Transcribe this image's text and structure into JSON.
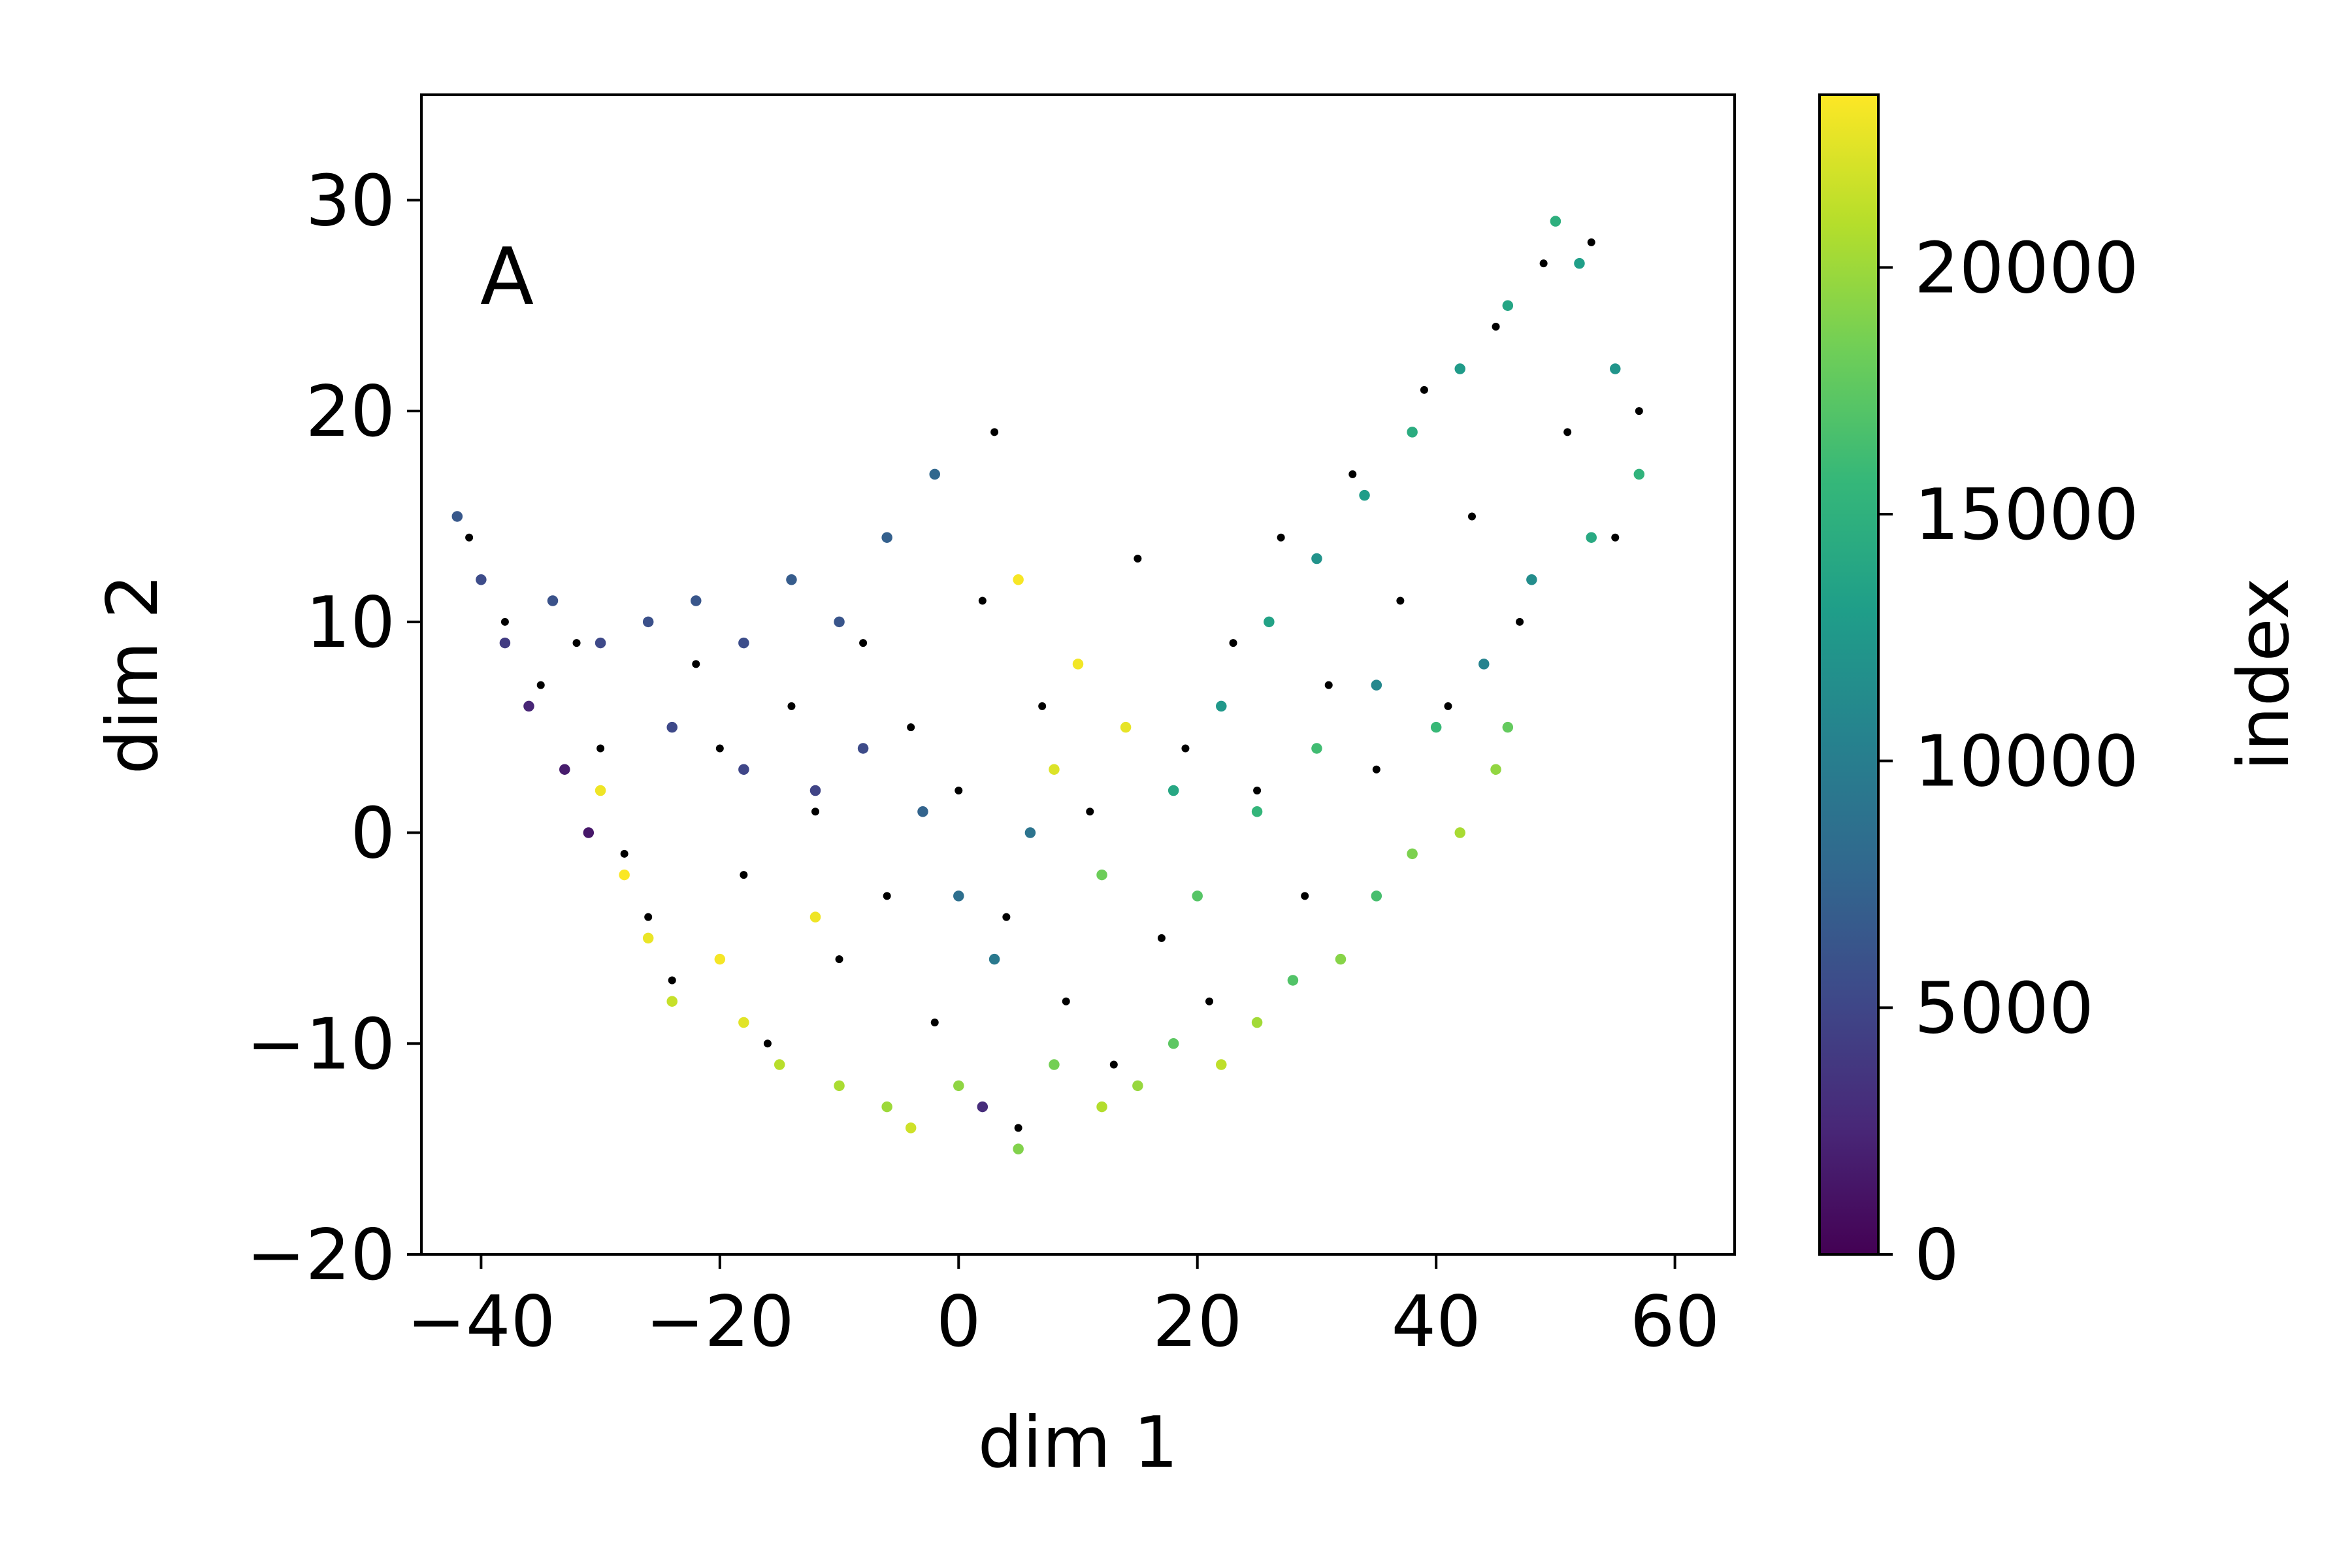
{
  "chart_data": {
    "type": "scatter",
    "panel_label": "A",
    "xlabel": "dim 1",
    "ylabel": "dim 2",
    "xlim": [
      -45,
      65
    ],
    "ylim": [
      -20,
      35
    ],
    "xticks": [
      -40,
      -20,
      0,
      20,
      40,
      60
    ],
    "xtick_labels": [
      "−40",
      "−20",
      "0",
      "20",
      "40",
      "60"
    ],
    "yticks": [
      -20,
      -10,
      0,
      10,
      20,
      30
    ],
    "ytick_labels": [
      "−20",
      "−10",
      "0",
      "10",
      "20",
      "30"
    ],
    "grid": false,
    "colorbar": {
      "label": "index",
      "range": [
        0,
        23500
      ],
      "ticks": [
        0,
        5000,
        10000,
        15000,
        20000
      ],
      "tick_labels": [
        "0",
        "5000",
        "10000",
        "15000",
        "20000"
      ],
      "colormap": [
        "#440154",
        "#482878",
        "#3e4989",
        "#31688e",
        "#26828e",
        "#1f9e89",
        "#35b779",
        "#6ece58",
        "#b5de2b",
        "#fde725"
      ]
    },
    "series": [
      {
        "name": "points colored by index",
        "encoding": "colormap",
        "points": [
          {
            "x": -42,
            "y": 15,
            "index": 6500
          },
          {
            "x": -40,
            "y": 12,
            "index": 5500
          },
          {
            "x": -38,
            "y": 9,
            "index": 4200
          },
          {
            "x": -36,
            "y": 6,
            "index": 2500
          },
          {
            "x": -33,
            "y": 3,
            "index": 1800
          },
          {
            "x": -31,
            "y": 0,
            "index": 1500
          },
          {
            "x": -34,
            "y": 11,
            "index": 6000
          },
          {
            "x": -30,
            "y": 9,
            "index": 5200
          },
          {
            "x": -26,
            "y": 10,
            "index": 5800
          },
          {
            "x": -22,
            "y": 11,
            "index": 6300
          },
          {
            "x": -18,
            "y": 9,
            "index": 5600
          },
          {
            "x": -14,
            "y": 12,
            "index": 6800
          },
          {
            "x": -10,
            "y": 10,
            "index": 6200
          },
          {
            "x": -6,
            "y": 14,
            "index": 7200
          },
          {
            "x": -2,
            "y": 17,
            "index": 7800
          },
          {
            "x": -24,
            "y": 5,
            "index": 5200
          },
          {
            "x": -18,
            "y": 3,
            "index": 5000
          },
          {
            "x": -12,
            "y": 2,
            "index": 4800
          },
          {
            "x": -8,
            "y": 4,
            "index": 5400
          },
          {
            "x": -30,
            "y": 2,
            "index": 23000
          },
          {
            "x": -28,
            "y": -2,
            "index": 23400
          },
          {
            "x": -26,
            "y": -5,
            "index": 22800
          },
          {
            "x": -24,
            "y": -8,
            "index": 21500
          },
          {
            "x": -20,
            "y": -6,
            "index": 23200
          },
          {
            "x": -18,
            "y": -9,
            "index": 22500
          },
          {
            "x": -15,
            "y": -11,
            "index": 21000
          },
          {
            "x": -12,
            "y": -4,
            "index": 23000
          },
          {
            "x": -10,
            "y": -12,
            "index": 20500
          },
          {
            "x": -6,
            "y": -13,
            "index": 20000
          },
          {
            "x": -4,
            "y": -14,
            "index": 21800
          },
          {
            "x": 0,
            "y": -12,
            "index": 19500
          },
          {
            "x": 2,
            "y": -13,
            "index": 3000
          },
          {
            "x": 5,
            "y": -15,
            "index": 19000
          },
          {
            "x": 8,
            "y": -11,
            "index": 18500
          },
          {
            "x": 12,
            "y": -13,
            "index": 20800
          },
          {
            "x": 15,
            "y": -12,
            "index": 19800
          },
          {
            "x": 18,
            "y": -10,
            "index": 17500
          },
          {
            "x": 22,
            "y": -11,
            "index": 21200
          },
          {
            "x": 25,
            "y": -9,
            "index": 20200
          },
          {
            "x": 28,
            "y": -7,
            "index": 17000
          },
          {
            "x": 32,
            "y": -6,
            "index": 19200
          },
          {
            "x": 35,
            "y": -3,
            "index": 16500
          },
          {
            "x": 38,
            "y": -1,
            "index": 18800
          },
          {
            "x": 42,
            "y": 0,
            "index": 20400
          },
          {
            "x": 45,
            "y": 3,
            "index": 19600
          },
          {
            "x": 46,
            "y": 5,
            "index": 17800
          },
          {
            "x": 5,
            "y": 12,
            "index": 23300
          },
          {
            "x": 10,
            "y": 8,
            "index": 23100
          },
          {
            "x": 14,
            "y": 5,
            "index": 22700
          },
          {
            "x": 8,
            "y": 3,
            "index": 22300
          },
          {
            "x": 12,
            "y": -2,
            "index": 18200
          },
          {
            "x": 18,
            "y": 2,
            "index": 14000
          },
          {
            "x": 22,
            "y": 6,
            "index": 12500
          },
          {
            "x": 26,
            "y": 10,
            "index": 13500
          },
          {
            "x": 30,
            "y": 13,
            "index": 12000
          },
          {
            "x": 34,
            "y": 16,
            "index": 13000
          },
          {
            "x": 38,
            "y": 19,
            "index": 14500
          },
          {
            "x": 42,
            "y": 22,
            "index": 12800
          },
          {
            "x": 46,
            "y": 25,
            "index": 13800
          },
          {
            "x": 50,
            "y": 29,
            "index": 14800
          },
          {
            "x": 52,
            "y": 27,
            "index": 13200
          },
          {
            "x": 55,
            "y": 22,
            "index": 12200
          },
          {
            "x": 57,
            "y": 17,
            "index": 15200
          },
          {
            "x": 53,
            "y": 14,
            "index": 14200
          },
          {
            "x": 48,
            "y": 12,
            "index": 11500
          },
          {
            "x": 44,
            "y": 8,
            "index": 10500
          },
          {
            "x": 40,
            "y": 5,
            "index": 15800
          },
          {
            "x": 35,
            "y": 7,
            "index": 11000
          },
          {
            "x": 30,
            "y": 4,
            "index": 16200
          },
          {
            "x": 25,
            "y": 1,
            "index": 15500
          },
          {
            "x": 20,
            "y": -3,
            "index": 17200
          },
          {
            "x": 3,
            "y": -6,
            "index": 9500
          },
          {
            "x": 0,
            "y": -3,
            "index": 8500
          },
          {
            "x": -3,
            "y": 1,
            "index": 7500
          },
          {
            "x": 6,
            "y": 0,
            "index": 9000
          }
        ]
      },
      {
        "name": "black markers",
        "color": "#000000",
        "points": [
          {
            "x": -41,
            "y": 14
          },
          {
            "x": -38,
            "y": 10
          },
          {
            "x": -35,
            "y": 7
          },
          {
            "x": -32,
            "y": 9
          },
          {
            "x": -30,
            "y": 4
          },
          {
            "x": -28,
            "y": -1
          },
          {
            "x": -26,
            "y": -4
          },
          {
            "x": -24,
            "y": -7
          },
          {
            "x": -22,
            "y": 8
          },
          {
            "x": -20,
            "y": 4
          },
          {
            "x": -18,
            "y": -2
          },
          {
            "x": -16,
            "y": -10
          },
          {
            "x": -14,
            "y": 6
          },
          {
            "x": -12,
            "y": 1
          },
          {
            "x": -10,
            "y": -6
          },
          {
            "x": -8,
            "y": 9
          },
          {
            "x": -6,
            "y": -3
          },
          {
            "x": -4,
            "y": 5
          },
          {
            "x": -2,
            "y": -9
          },
          {
            "x": 0,
            "y": 2
          },
          {
            "x": 2,
            "y": 11
          },
          {
            "x": 3,
            "y": 19
          },
          {
            "x": 4,
            "y": -4
          },
          {
            "x": 5,
            "y": -14
          },
          {
            "x": 7,
            "y": 6
          },
          {
            "x": 9,
            "y": -8
          },
          {
            "x": 11,
            "y": 1
          },
          {
            "x": 13,
            "y": -11
          },
          {
            "x": 15,
            "y": 13
          },
          {
            "x": 17,
            "y": -5
          },
          {
            "x": 19,
            "y": 4
          },
          {
            "x": 21,
            "y": -8
          },
          {
            "x": 23,
            "y": 9
          },
          {
            "x": 25,
            "y": 2
          },
          {
            "x": 27,
            "y": 14
          },
          {
            "x": 29,
            "y": -3
          },
          {
            "x": 31,
            "y": 7
          },
          {
            "x": 33,
            "y": 17
          },
          {
            "x": 35,
            "y": 3
          },
          {
            "x": 37,
            "y": 11
          },
          {
            "x": 39,
            "y": 21
          },
          {
            "x": 41,
            "y": 6
          },
          {
            "x": 43,
            "y": 15
          },
          {
            "x": 45,
            "y": 24
          },
          {
            "x": 47,
            "y": 10
          },
          {
            "x": 49,
            "y": 27
          },
          {
            "x": 51,
            "y": 19
          },
          {
            "x": 53,
            "y": 28
          },
          {
            "x": 55,
            "y": 14
          },
          {
            "x": 57,
            "y": 20
          }
        ]
      }
    ]
  }
}
